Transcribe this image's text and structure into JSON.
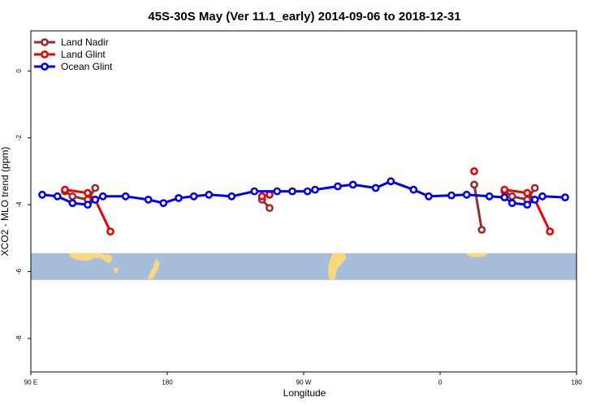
{
  "chart_data": {
    "type": "line",
    "title": "45S-30S May (Ver 11.1_early)   2014-09-06 to 2018-12-31",
    "xlabel": "Longitude",
    "ylabel": "XCO2 - MLO trend (ppm)",
    "xlim": [
      90,
      450
    ],
    "ylim": [
      -9,
      1.2
    ],
    "x_ticks": [
      {
        "value": 90,
        "label": "90 E"
      },
      {
        "value": 180,
        "label": "180"
      },
      {
        "value": 270,
        "label": "90 W"
      },
      {
        "value": 360,
        "label": "0"
      },
      {
        "value": 450,
        "label": "180"
      }
    ],
    "y_ticks": [
      {
        "value": 0,
        "label": "0"
      },
      {
        "value": -2,
        "label": "-2"
      },
      {
        "value": -4,
        "label": "-4"
      },
      {
        "value": -6,
        "label": "-6"
      },
      {
        "value": -8,
        "label": "-8"
      }
    ],
    "map_band": {
      "y_top": -5.45,
      "y_bottom": -6.25,
      "ocean_color": "#a7bddc",
      "land_color": "#f9d77e"
    },
    "legend_position": "top-left",
    "series": [
      {
        "name": "Land Nadir",
        "color": "#9b2c2c",
        "segments": [
          [
            [
              112.5,
              -3.6
            ],
            [
              117.5,
              -3.75
            ],
            [
              127.5,
              -3.85
            ],
            [
              132.5,
              -3.5
            ]
          ],
          [
            [
              242.5,
              -3.85
            ],
            [
              247.5,
              -4.1
            ]
          ],
          [
            [
              382.5,
              -3.4
            ],
            [
              387.5,
              -4.75
            ]
          ],
          [
            [
              402.5,
              -3.6
            ],
            [
              407.5,
              -3.75
            ],
            [
              417.5,
              -3.85
            ],
            [
              422.5,
              -3.5
            ]
          ]
        ]
      },
      {
        "name": "Land Glint",
        "color": "#ee0000",
        "segments": [
          [
            [
              112.5,
              -3.55
            ],
            [
              127.5,
              -3.65
            ],
            [
              132.5,
              -3.85
            ],
            [
              142.5,
              -4.8
            ]
          ],
          [
            [
              242.5,
              -3.75
            ],
            [
              247.5,
              -3.7
            ]
          ],
          [
            [
              382.5,
              -3.0
            ]
          ],
          [
            [
              402.5,
              -3.55
            ],
            [
              417.5,
              -3.65
            ],
            [
              422.5,
              -3.85
            ],
            [
              432.5,
              -4.8
            ]
          ]
        ]
      },
      {
        "name": "Ocean Glint",
        "color": "#0000ee",
        "segments": [
          [
            [
              97.5,
              -3.7
            ],
            [
              107.5,
              -3.75
            ],
            [
              117.5,
              -3.95
            ],
            [
              127.5,
              -4.0
            ],
            [
              132.5,
              -3.85
            ],
            [
              137.5,
              -3.75
            ],
            [
              152.5,
              -3.75
            ],
            [
              167.5,
              -3.85
            ],
            [
              177.5,
              -3.95
            ],
            [
              187.5,
              -3.8
            ],
            [
              197.5,
              -3.75
            ],
            [
              207.5,
              -3.7
            ],
            [
              222.5,
              -3.75
            ],
            [
              237.5,
              -3.6
            ],
            [
              252.5,
              -3.6
            ],
            [
              262.5,
              -3.6
            ],
            [
              272.5,
              -3.6
            ],
            [
              277.5,
              -3.55
            ],
            [
              292.5,
              -3.45
            ],
            [
              302.5,
              -3.4
            ],
            [
              317.5,
              -3.5
            ],
            [
              327.5,
              -3.3
            ],
            [
              342.5,
              -3.55
            ],
            [
              352.5,
              -3.75
            ],
            [
              367.5,
              -3.72
            ],
            [
              377.5,
              -3.7
            ],
            [
              392.5,
              -3.75
            ],
            [
              402.5,
              -3.78
            ],
            [
              407.5,
              -3.95
            ],
            [
              417.5,
              -4.0
            ],
            [
              422.5,
              -3.85
            ],
            [
              427.5,
              -3.75
            ],
            [
              442.5,
              -3.78
            ]
          ]
        ]
      }
    ]
  }
}
